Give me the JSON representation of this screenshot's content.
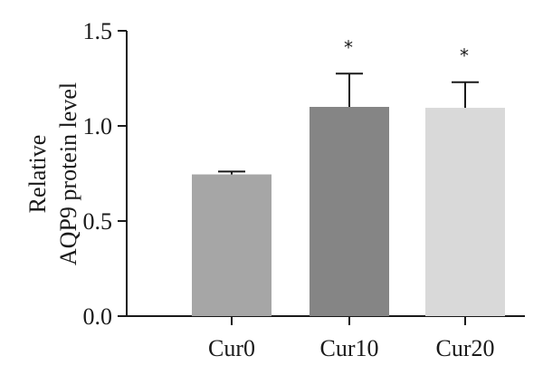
{
  "chart_data": {
    "type": "bar",
    "categories": [
      "Cur0",
      "Cur10",
      "Cur20"
    ],
    "values": [
      0.745,
      1.1,
      1.095
    ],
    "errors": [
      0.015,
      0.175,
      0.135
    ],
    "significance": [
      "",
      "*",
      "*"
    ],
    "bar_colors": [
      "#a6a6a6",
      "#858585",
      "#d9d9d9"
    ],
    "ylabel_lines": [
      "Relative",
      "AQP9 protein level"
    ],
    "ylim": [
      0,
      1.5
    ],
    "yticks": [
      "0.0",
      "0.5",
      "1.0",
      "1.5"
    ],
    "grid": false
  }
}
